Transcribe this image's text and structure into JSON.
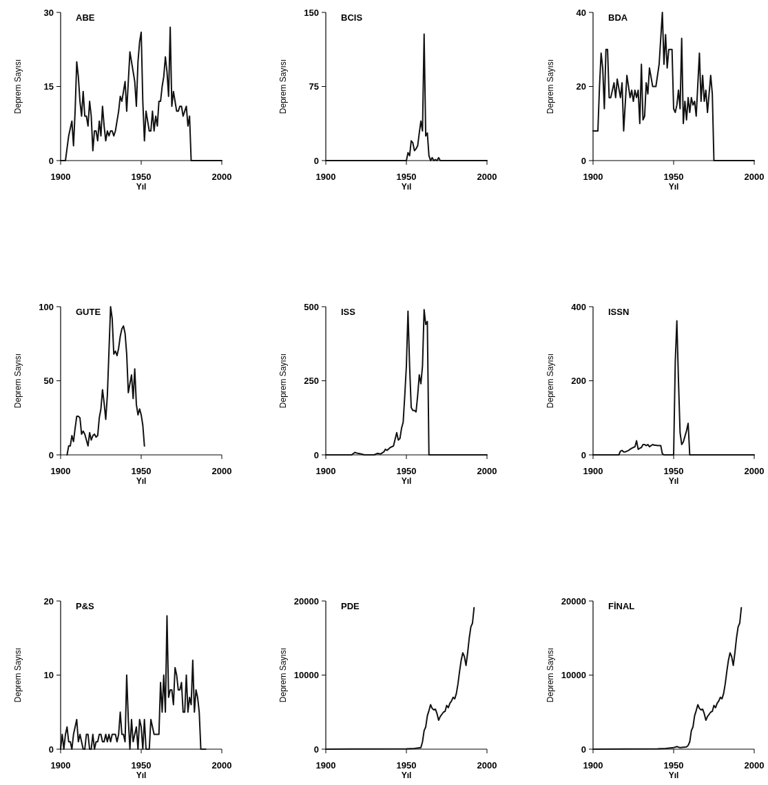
{
  "chart_data": [
    {
      "type": "line",
      "title": "ABE",
      "xlabel": "Yıl",
      "ylabel": "Deprem Sayısı",
      "xlim": [
        1900,
        2000
      ],
      "xticks": [
        1900,
        1950,
        2000
      ],
      "ylim": [
        0,
        30
      ],
      "yticks": [
        0,
        15,
        30
      ],
      "x": [
        1900,
        1903,
        1905,
        1907,
        1908,
        1909,
        1910,
        1911,
        1912,
        1913,
        1914,
        1915,
        1916,
        1917,
        1918,
        1919,
        1920,
        1921,
        1922,
        1923,
        1924,
        1925,
        1926,
        1927,
        1928,
        1929,
        1930,
        1931,
        1932,
        1933,
        1934,
        1935,
        1936,
        1937,
        1938,
        1939,
        1940,
        1941,
        1942,
        1943,
        1944,
        1945,
        1946,
        1947,
        1948,
        1949,
        1950,
        1951,
        1952,
        1953,
        1954,
        1955,
        1956,
        1957,
        1958,
        1959,
        1960,
        1961,
        1962,
        1963,
        1964,
        1965,
        1966,
        1967,
        1968,
        1969,
        1970,
        1971,
        1972,
        1973,
        1974,
        1975,
        1976,
        1977,
        1978,
        1979,
        1980,
        1981,
        2000
      ],
      "series": [
        {
          "color": "#111111",
          "values": [
            0,
            0,
            5,
            8,
            3,
            10,
            20,
            17,
            12,
            9,
            14,
            9,
            9,
            7,
            12,
            9,
            2,
            6,
            6,
            4,
            8,
            5,
            11,
            7,
            4,
            6,
            5,
            6,
            6,
            5,
            6,
            8,
            10,
            13,
            12,
            14,
            16,
            10,
            16,
            22,
            20,
            18,
            16,
            11,
            20,
            24,
            26,
            12,
            4,
            10,
            8,
            6,
            6,
            10,
            6,
            9,
            7,
            12,
            12,
            15,
            17,
            21,
            18,
            13,
            27,
            11,
            14,
            12,
            10,
            10,
            11,
            11,
            9,
            10,
            11,
            7,
            9,
            0,
            0
          ]
        }
      ]
    },
    {
      "type": "line",
      "title": "BCIS",
      "xlabel": "Yıl",
      "ylabel": "Deprem Sayısı",
      "xlim": [
        1900,
        2000
      ],
      "xticks": [
        1900,
        1950,
        2000
      ],
      "ylim": [
        0,
        150
      ],
      "yticks": [
        0,
        75,
        150
      ],
      "x": [
        1900,
        1950,
        1951,
        1952,
        1953,
        1954,
        1955,
        1956,
        1957,
        1958,
        1959,
        1960,
        1961,
        1962,
        1963,
        1964,
        1965,
        1966,
        1967,
        1968,
        1969,
        1970,
        1971,
        2000
      ],
      "series": [
        {
          "color": "#111111",
          "values": [
            0,
            0,
            8,
            5,
            20,
            18,
            10,
            12,
            15,
            28,
            40,
            30,
            128,
            25,
            28,
            5,
            0,
            3,
            0,
            1,
            0,
            3,
            0,
            0
          ]
        }
      ]
    },
    {
      "type": "line",
      "title": "BDA",
      "xlabel": "Yıl",
      "ylabel": "Deprem Sayısı",
      "xlim": [
        1900,
        2000
      ],
      "xticks": [
        1900,
        1950,
        2000
      ],
      "ylim": [
        0,
        40
      ],
      "yticks": [
        0,
        20,
        40
      ],
      "x": [
        1900,
        1903,
        1904,
        1905,
        1906,
        1907,
        1908,
        1909,
        1910,
        1911,
        1913,
        1914,
        1915,
        1917,
        1918,
        1919,
        1921,
        1923,
        1924,
        1925,
        1926,
        1927,
        1928,
        1929,
        1930,
        1931,
        1932,
        1933,
        1934,
        1935,
        1937,
        1939,
        1941,
        1943,
        1944,
        1945,
        1946,
        1947,
        1949,
        1950,
        1951,
        1952,
        1953,
        1954,
        1955,
        1956,
        1957,
        1958,
        1959,
        1960,
        1961,
        1962,
        1963,
        1964,
        1966,
        1967,
        1968,
        1969,
        1970,
        1971,
        1972,
        1973,
        1974,
        1975,
        1976,
        1977,
        1978,
        2000
      ],
      "series": [
        {
          "color": "#111111",
          "values": [
            8,
            8,
            20,
            29,
            25,
            14,
            30,
            30,
            17,
            17,
            21,
            17,
            22,
            17,
            21,
            8,
            23,
            17,
            19,
            16,
            19,
            17,
            19,
            10,
            26,
            11,
            12,
            21,
            18,
            25,
            20,
            20,
            26,
            40,
            26,
            34,
            25,
            30,
            30,
            14,
            13,
            15,
            19,
            14,
            33,
            10,
            16,
            11,
            17,
            13,
            17,
            15,
            16,
            12,
            29,
            16,
            23,
            16,
            19,
            13,
            18,
            23,
            18,
            0,
            0,
            0,
            0,
            0
          ]
        }
      ]
    },
    {
      "type": "line",
      "title": "GUTE",
      "xlabel": "Yıl",
      "ylabel": "Deprem Sayısı",
      "xlim": [
        1900,
        2000
      ],
      "xticks": [
        1900,
        1950,
        2000
      ],
      "ylim": [
        0,
        100
      ],
      "yticks": [
        0,
        50,
        100
      ],
      "x": [
        1904,
        1905,
        1906,
        1907,
        1908,
        1909,
        1910,
        1911,
        1912,
        1913,
        1914,
        1915,
        1916,
        1917,
        1918,
        1919,
        1920,
        1921,
        1922,
        1923,
        1924,
        1925,
        1926,
        1927,
        1928,
        1929,
        1930,
        1931,
        1932,
        1933,
        1934,
        1935,
        1936,
        1937,
        1938,
        1939,
        1940,
        1941,
        1942,
        1943,
        1944,
        1945,
        1946,
        1947,
        1948,
        1949,
        1950,
        1951,
        1952
      ],
      "series": [
        {
          "color": "#111111",
          "values": [
            0,
            6,
            6,
            13,
            9,
            18,
            26,
            26,
            25,
            14,
            16,
            14,
            10,
            6,
            15,
            10,
            13,
            14,
            12,
            13,
            25,
            31,
            44,
            35,
            24,
            40,
            70,
            100,
            92,
            68,
            70,
            67,
            72,
            80,
            85,
            87,
            82,
            68,
            42,
            48,
            54,
            38,
            58,
            34,
            27,
            31,
            27,
            20,
            6
          ]
        }
      ]
    },
    {
      "type": "line",
      "title": "ISS",
      "xlabel": "Yıl",
      "ylabel": "Deprem Sayısı",
      "xlim": [
        1900,
        2000
      ],
      "xticks": [
        1900,
        1950,
        2000
      ],
      "ylim": [
        0,
        500
      ],
      "yticks": [
        0,
        250,
        500
      ],
      "x": [
        1900,
        1916,
        1918,
        1920,
        1922,
        1924,
        1930,
        1932,
        1934,
        1936,
        1937,
        1938,
        1940,
        1942,
        1944,
        1945,
        1946,
        1947,
        1948,
        1949,
        1950,
        1951,
        1952,
        1953,
        1954,
        1955,
        1956,
        1957,
        1958,
        1959,
        1960,
        1961,
        1962,
        1963,
        1964,
        2000
      ],
      "series": [
        {
          "color": "#111111",
          "values": [
            0,
            0,
            8,
            5,
            3,
            0,
            0,
            5,
            3,
            10,
            19,
            15,
            25,
            30,
            75,
            50,
            55,
            90,
            110,
            200,
            300,
            485,
            300,
            160,
            150,
            150,
            145,
            200,
            270,
            240,
            300,
            490,
            440,
            450,
            0,
            0
          ]
        }
      ]
    },
    {
      "type": "line",
      "title": "ISSN",
      "xlabel": "Yıl",
      "ylabel": "Deprem Sayısı",
      "xlim": [
        1900,
        2000
      ],
      "xticks": [
        1900,
        1950,
        2000
      ],
      "ylim": [
        0,
        400
      ],
      "yticks": [
        0,
        200,
        400
      ],
      "x": [
        1900,
        1916,
        1917,
        1918,
        1919,
        1920,
        1921,
        1922,
        1923,
        1924,
        1925,
        1926,
        1927,
        1928,
        1929,
        1930,
        1931,
        1932,
        1933,
        1934,
        1935,
        1936,
        1937,
        1938,
        1939,
        1940,
        1941,
        1942,
        1943,
        1944,
        1949,
        1950,
        1951,
        1952,
        1953,
        1954,
        1955,
        1956,
        1957,
        1958,
        1959,
        1960,
        1961,
        2000
      ],
      "series": [
        {
          "color": "#111111",
          "values": [
            0,
            0,
            10,
            12,
            8,
            8,
            10,
            12,
            15,
            18,
            20,
            22,
            38,
            15,
            18,
            20,
            28,
            28,
            25,
            28,
            22,
            25,
            28,
            26,
            26,
            25,
            25,
            25,
            3,
            0,
            0,
            0,
            250,
            362,
            200,
            60,
            28,
            35,
            50,
            65,
            85,
            0,
            0,
            0
          ]
        }
      ]
    },
    {
      "type": "line",
      "title": "P&S",
      "xlabel": "Yıl",
      "ylabel": "Deprem Sayısı",
      "xlim": [
        1900,
        2000
      ],
      "xticks": [
        1900,
        1950,
        2000
      ],
      "ylim": [
        0,
        20
      ],
      "yticks": [
        0,
        10,
        20
      ],
      "x": [
        1900,
        1901,
        1902,
        1903,
        1904,
        1905,
        1906,
        1907,
        1908,
        1909,
        1910,
        1911,
        1912,
        1913,
        1914,
        1915,
        1916,
        1917,
        1918,
        1919,
        1920,
        1921,
        1922,
        1923,
        1924,
        1925,
        1926,
        1927,
        1928,
        1929,
        1930,
        1931,
        1932,
        1933,
        1934,
        1935,
        1936,
        1937,
        1938,
        1939,
        1940,
        1941,
        1942,
        1943,
        1944,
        1945,
        1946,
        1947,
        1948,
        1949,
        1950,
        1951,
        1952,
        1953,
        1954,
        1955,
        1956,
        1957,
        1958,
        1959,
        1960,
        1961,
        1962,
        1963,
        1964,
        1965,
        1966,
        1967,
        1968,
        1969,
        1970,
        1971,
        1972,
        1973,
        1974,
        1975,
        1976,
        1977,
        1978,
        1979,
        1980,
        1981,
        1982,
        1983,
        1984,
        1985,
        1986,
        1987,
        1988,
        1989,
        1990
      ],
      "series": [
        {
          "color": "#111111",
          "values": [
            0,
            2,
            0,
            2,
            3,
            1,
            1,
            0,
            2,
            3,
            4,
            1,
            2,
            1,
            0,
            0,
            2,
            2,
            0,
            0,
            2,
            0,
            1,
            1,
            2,
            2,
            1,
            1,
            2,
            1,
            2,
            1,
            2,
            2,
            2,
            1,
            2,
            5,
            2,
            2,
            1,
            10,
            4,
            0,
            4,
            1,
            2,
            3,
            0,
            4,
            3,
            0,
            4,
            0,
            0,
            0,
            4,
            3,
            2,
            2,
            2,
            2,
            9,
            5,
            10,
            5,
            18,
            7,
            8,
            8,
            6,
            11,
            10,
            8,
            8,
            9,
            5,
            5,
            10,
            5,
            7,
            6,
            12,
            5,
            8,
            7,
            5,
            0,
            0,
            0,
            0
          ]
        }
      ]
    },
    {
      "type": "line",
      "title": "PDE",
      "xlabel": "Yıl",
      "ylabel": "Deprem Sayısı",
      "xlim": [
        1900,
        2000
      ],
      "xticks": [
        1900,
        1950,
        2000
      ],
      "ylim": [
        0,
        20000
      ],
      "yticks": [
        0,
        10000,
        20000
      ],
      "x": [
        1900,
        1950,
        1955,
        1959,
        1960,
        1961,
        1962,
        1963,
        1964,
        1965,
        1966,
        1967,
        1968,
        1969,
        1970,
        1971,
        1972,
        1973,
        1974,
        1975,
        1976,
        1977,
        1978,
        1979,
        1980,
        1981,
        1982,
        1983,
        1984,
        1985,
        1986,
        1987,
        1988,
        1989,
        1990,
        1991,
        1992
      ],
      "series": [
        {
          "color": "#111111",
          "values": [
            0,
            50,
            100,
            200,
            1000,
            2500,
            3000,
            4500,
            5200,
            6000,
            5500,
            5300,
            5400,
            4800,
            3900,
            4400,
            4700,
            5000,
            5100,
            5900,
            5600,
            6200,
            6500,
            7000,
            6800,
            7500,
            8800,
            10500,
            12000,
            13000,
            12500,
            11300,
            13000,
            15000,
            16500,
            17000,
            19100
          ]
        }
      ]
    },
    {
      "type": "line",
      "title": "FİNAL",
      "xlabel": "Yıl",
      "ylabel": "Deprem Sayısı",
      "xlim": [
        1900,
        2000
      ],
      "xticks": [
        1900,
        1950,
        2000
      ],
      "ylim": [
        0,
        20000
      ],
      "yticks": [
        0,
        10000,
        20000
      ],
      "x": [
        1900,
        1940,
        1945,
        1950,
        1952,
        1954,
        1958,
        1959,
        1960,
        1961,
        1962,
        1963,
        1964,
        1965,
        1966,
        1967,
        1968,
        1969,
        1970,
        1971,
        1972,
        1973,
        1974,
        1975,
        1976,
        1977,
        1978,
        1979,
        1980,
        1981,
        1982,
        1983,
        1984,
        1985,
        1986,
        1987,
        1988,
        1989,
        1990,
        1991,
        1992
      ],
      "series": [
        {
          "color": "#111111",
          "values": [
            0,
            50,
            100,
            200,
            350,
            200,
            300,
            500,
            1000,
            2500,
            3000,
            4500,
            5200,
            6000,
            5500,
            5300,
            5400,
            4800,
            3900,
            4400,
            4700,
            5000,
            5100,
            5900,
            5600,
            6200,
            6500,
            7000,
            6800,
            7500,
            8800,
            10500,
            12000,
            13000,
            12500,
            11300,
            13000,
            15000,
            16500,
            17000,
            19100
          ]
        }
      ]
    }
  ]
}
